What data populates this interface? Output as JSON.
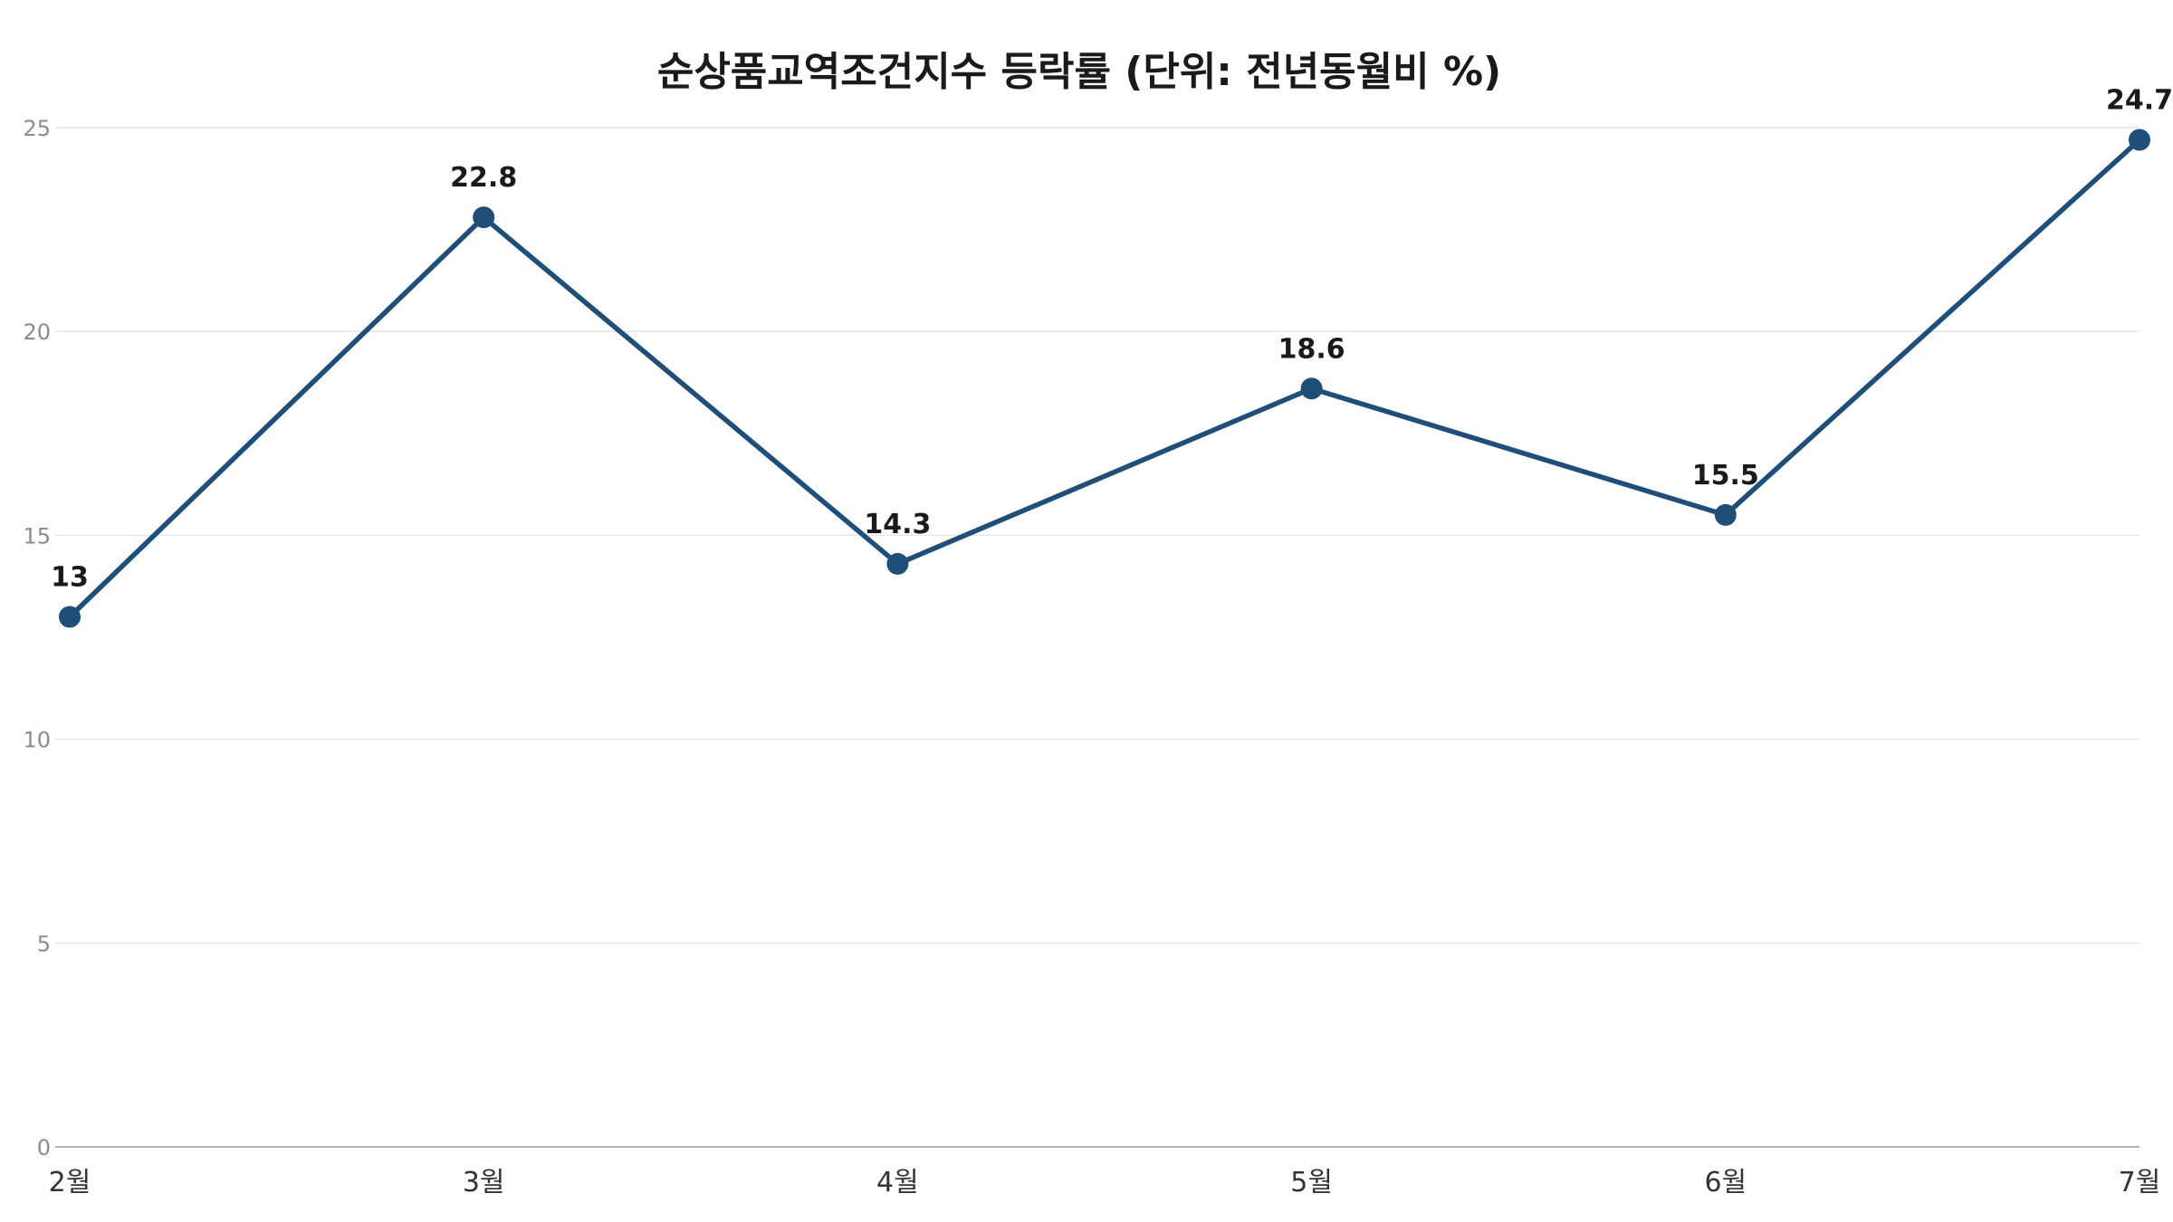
{
  "chart_data": {
    "type": "line",
    "title": "순상품교역조건지수 등락률 (단위: 전년동월비 %)",
    "xlabel": "",
    "ylabel": "",
    "categories": [
      "2월",
      "3월",
      "4월",
      "5월",
      "6월",
      "7월"
    ],
    "series": [
      {
        "values": [
          13,
          22.8,
          14.3,
          18.6,
          15.5,
          24.7
        ]
      }
    ],
    "data_labels": [
      "13",
      "22.8",
      "14.3",
      "18.6",
      "15.5",
      "24.7"
    ],
    "ylim": [
      0,
      25
    ],
    "y_ticks": [
      0,
      5,
      10,
      15,
      20,
      25
    ],
    "y_tick_labels": [
      "0",
      "5",
      "10",
      "15",
      "20",
      "25"
    ],
    "grid": true,
    "legend": "none",
    "colors": {
      "line": "#1f4e79",
      "marker": "#1f4e79"
    }
  }
}
